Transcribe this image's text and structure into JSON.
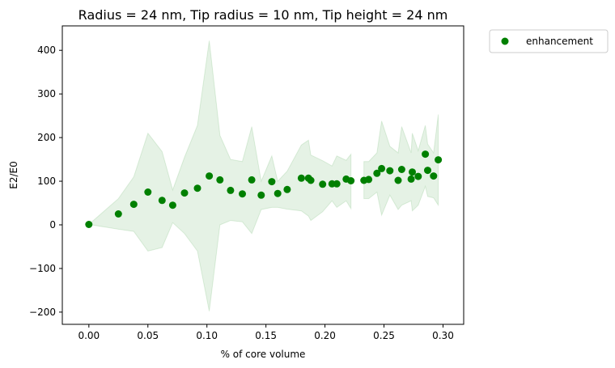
{
  "chart_data": {
    "type": "scatter",
    "title": "Radius = 24 nm, Tip radius = 10 nm, Tip height = 24 nm",
    "xlabel": "% of core volume",
    "ylabel": "E2/E0",
    "xlim": [
      -0.0225,
      0.3175
    ],
    "ylim": [
      -228,
      456
    ],
    "xticks": [
      0.0,
      0.05,
      0.1,
      0.15,
      0.2,
      0.25,
      0.3
    ],
    "xtick_labels": [
      "0.00",
      "0.05",
      "0.10",
      "0.15",
      "0.20",
      "0.25",
      "0.30"
    ],
    "yticks": [
      -200,
      -100,
      0,
      100,
      200,
      300,
      400
    ],
    "ytick_labels": [
      "−200",
      "−100",
      "0",
      "100",
      "200",
      "300",
      "400"
    ],
    "grid": false,
    "legend": {
      "placement": "outside-top-right",
      "entries": [
        "enhancement"
      ]
    },
    "series": [
      {
        "name": "enhancement",
        "color": "#008000",
        "x": [
          0.0,
          0.025,
          0.038,
          0.05,
          0.062,
          0.071,
          0.081,
          0.092,
          0.102,
          0.111,
          0.12,
          0.13,
          0.138,
          0.146,
          0.155,
          0.16,
          0.168,
          0.18,
          0.186,
          0.188,
          0.198,
          0.206,
          0.21,
          0.218,
          0.222,
          0.233,
          0.237,
          0.244,
          0.248,
          0.255,
          0.262,
          0.265,
          0.273,
          0.274,
          0.279,
          0.285,
          0.287,
          0.292,
          0.296
        ],
        "y": [
          1,
          25,
          47,
          75,
          56,
          45,
          73,
          84,
          112,
          103,
          79,
          71,
          103,
          68,
          99,
          72,
          81,
          107,
          107,
          102,
          93,
          94,
          94,
          105,
          101,
          102,
          104,
          118,
          129,
          124,
          102,
          127,
          105,
          121,
          111,
          162,
          125,
          112,
          149
        ]
      }
    ],
    "band": {
      "color": "#008000",
      "opacity": 0.1,
      "segments": [
        {
          "x": [
            0.0,
            0.025,
            0.038,
            0.05,
            0.062,
            0.071,
            0.081,
            0.092,
            0.102,
            0.111,
            0.12,
            0.13,
            0.138,
            0.146,
            0.155,
            0.16,
            0.168,
            0.18,
            0.186,
            0.188,
            0.198,
            0.206,
            0.21,
            0.218,
            0.222
          ],
          "upper": [
            1,
            60,
            110,
            210,
            168,
            80,
            155,
            228,
            422,
            205,
            150,
            145,
            225,
            100,
            158,
            100,
            123,
            183,
            194,
            160,
            147,
            135,
            158,
            148,
            162
          ],
          "lower": [
            1,
            -10,
            -15,
            -60,
            -52,
            5,
            -20,
            -60,
            -198,
            0,
            10,
            7,
            -20,
            35,
            40,
            40,
            36,
            32,
            20,
            10,
            30,
            55,
            40,
            55,
            37
          ]
        },
        {
          "x": [
            0.233,
            0.237,
            0.244,
            0.248,
            0.255,
            0.262,
            0.265,
            0.273,
            0.274,
            0.279,
            0.285,
            0.287,
            0.292,
            0.296
          ],
          "upper": [
            145,
            145,
            165,
            238,
            180,
            165,
            225,
            165,
            210,
            170,
            228,
            185,
            165,
            253
          ],
          "lower": [
            60,
            60,
            75,
            22,
            68,
            35,
            45,
            55,
            32,
            45,
            88,
            65,
            62,
            45
          ]
        }
      ]
    }
  }
}
